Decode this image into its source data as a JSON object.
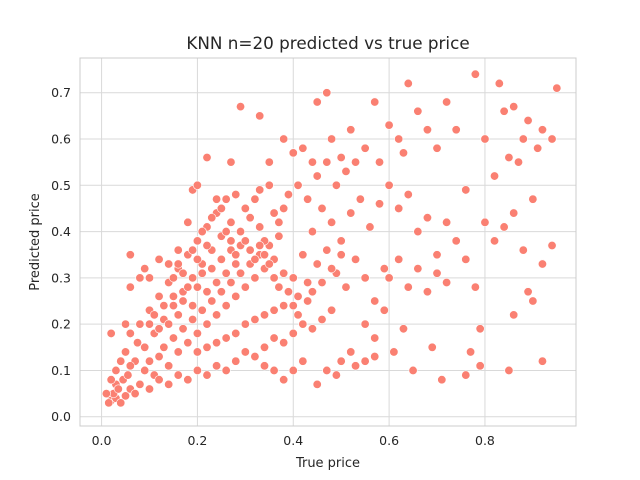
{
  "chart_data": {
    "type": "scatter",
    "title": "KNN n=20 predicted vs true price",
    "xlabel": "True price",
    "ylabel": "Predicted price",
    "xlim": [
      -0.045,
      0.99
    ],
    "ylim": [
      -0.02,
      0.775
    ],
    "xticks": [
      0.0,
      0.2,
      0.4,
      0.6,
      0.8
    ],
    "xtick_labels": [
      "0.0",
      "0.2",
      "0.4",
      "0.6",
      "0.8"
    ],
    "yticks": [
      0.0,
      0.1,
      0.2,
      0.3,
      0.4,
      0.5,
      0.6,
      0.7
    ],
    "ytick_labels": [
      "0.0",
      "0.1",
      "0.2",
      "0.3",
      "0.4",
      "0.5",
      "0.6",
      "0.7"
    ],
    "grid": true,
    "colors": {
      "points": "#fa8072",
      "point_edge": "#ffffff",
      "grid": "#d9d9d9",
      "frame": "#cccccc",
      "text": "#262626"
    },
    "series": [
      {
        "points": [
          [
            0.02,
            0.035
          ],
          [
            0.03,
            0.04
          ],
          [
            0.025,
            0.05
          ],
          [
            0.04,
            0.03
          ],
          [
            0.05,
            0.045
          ],
          [
            0.06,
            0.06
          ],
          [
            0.03,
            0.07
          ],
          [
            0.045,
            0.08
          ],
          [
            0.055,
            0.09
          ],
          [
            0.07,
            0.05
          ],
          [
            0.08,
            0.07
          ],
          [
            0.09,
            0.1
          ],
          [
            0.1,
            0.12
          ],
          [
            0.11,
            0.09
          ],
          [
            0.12,
            0.13
          ],
          [
            0.13,
            0.15
          ],
          [
            0.14,
            0.11
          ],
          [
            0.15,
            0.17
          ],
          [
            0.16,
            0.14
          ],
          [
            0.17,
            0.19
          ],
          [
            0.18,
            0.16
          ],
          [
            0.19,
            0.21
          ],
          [
            0.2,
            0.18
          ],
          [
            0.21,
            0.23
          ],
          [
            0.22,
            0.2
          ],
          [
            0.23,
            0.25
          ],
          [
            0.24,
            0.22
          ],
          [
            0.25,
            0.27
          ],
          [
            0.26,
            0.24
          ],
          [
            0.27,
            0.29
          ],
          [
            0.28,
            0.26
          ],
          [
            0.29,
            0.31
          ],
          [
            0.3,
            0.28
          ],
          [
            0.31,
            0.33
          ],
          [
            0.32,
            0.3
          ],
          [
            0.33,
            0.35
          ],
          [
            0.34,
            0.32
          ],
          [
            0.35,
            0.37
          ],
          [
            0.36,
            0.34
          ],
          [
            0.37,
            0.39
          ],
          [
            0.07,
            0.12
          ],
          [
            0.09,
            0.15
          ],
          [
            0.11,
            0.18
          ],
          [
            0.13,
            0.21
          ],
          [
            0.15,
            0.24
          ],
          [
            0.17,
            0.27
          ],
          [
            0.19,
            0.3
          ],
          [
            0.21,
            0.33
          ],
          [
            0.23,
            0.36
          ],
          [
            0.25,
            0.39
          ],
          [
            0.08,
            0.2
          ],
          [
            0.1,
            0.23
          ],
          [
            0.12,
            0.26
          ],
          [
            0.14,
            0.29
          ],
          [
            0.16,
            0.32
          ],
          [
            0.18,
            0.35
          ],
          [
            0.2,
            0.38
          ],
          [
            0.22,
            0.41
          ],
          [
            0.24,
            0.44
          ],
          [
            0.26,
            0.47
          ],
          [
            0.05,
            0.14
          ],
          [
            0.06,
            0.18
          ],
          [
            0.04,
            0.12
          ],
          [
            0.03,
            0.1
          ],
          [
            0.02,
            0.08
          ],
          [
            0.01,
            0.05
          ],
          [
            0.015,
            0.03
          ],
          [
            0.035,
            0.06
          ],
          [
            0.06,
            0.11
          ],
          [
            0.075,
            0.16
          ],
          [
            0.1,
            0.06
          ],
          [
            0.12,
            0.08
          ],
          [
            0.14,
            0.07
          ],
          [
            0.16,
            0.09
          ],
          [
            0.18,
            0.08
          ],
          [
            0.2,
            0.1
          ],
          [
            0.22,
            0.09
          ],
          [
            0.24,
            0.11
          ],
          [
            0.26,
            0.1
          ],
          [
            0.28,
            0.12
          ],
          [
            0.3,
            0.14
          ],
          [
            0.32,
            0.13
          ],
          [
            0.34,
            0.15
          ],
          [
            0.36,
            0.17
          ],
          [
            0.38,
            0.16
          ],
          [
            0.4,
            0.18
          ],
          [
            0.42,
            0.2
          ],
          [
            0.44,
            0.19
          ],
          [
            0.46,
            0.21
          ],
          [
            0.48,
            0.23
          ],
          [
            0.4,
            0.3
          ],
          [
            0.42,
            0.35
          ],
          [
            0.44,
            0.4
          ],
          [
            0.46,
            0.45
          ],
          [
            0.48,
            0.42
          ],
          [
            0.5,
            0.38
          ],
          [
            0.52,
            0.44
          ],
          [
            0.54,
            0.47
          ],
          [
            0.56,
            0.41
          ],
          [
            0.58,
            0.46
          ],
          [
            0.41,
            0.26
          ],
          [
            0.43,
            0.29
          ],
          [
            0.45,
            0.33
          ],
          [
            0.47,
            0.36
          ],
          [
            0.49,
            0.31
          ],
          [
            0.51,
            0.28
          ],
          [
            0.53,
            0.34
          ],
          [
            0.55,
            0.3
          ],
          [
            0.57,
            0.25
          ],
          [
            0.59,
            0.32
          ],
          [
            0.38,
            0.45
          ],
          [
            0.39,
            0.48
          ],
          [
            0.41,
            0.5
          ],
          [
            0.43,
            0.47
          ],
          [
            0.45,
            0.52
          ],
          [
            0.47,
            0.55
          ],
          [
            0.49,
            0.5
          ],
          [
            0.51,
            0.53
          ],
          [
            0.35,
            0.5
          ],
          [
            0.33,
            0.49
          ],
          [
            0.3,
            0.45
          ],
          [
            0.28,
            0.48
          ],
          [
            0.27,
            0.42
          ],
          [
            0.29,
            0.4
          ],
          [
            0.31,
            0.43
          ],
          [
            0.33,
            0.41
          ],
          [
            0.36,
            0.44
          ],
          [
            0.32,
            0.47
          ],
          [
            0.34,
            0.38
          ],
          [
            0.37,
            0.42
          ],
          [
            0.2,
            0.28
          ],
          [
            0.21,
            0.31
          ],
          [
            0.22,
            0.27
          ],
          [
            0.23,
            0.32
          ],
          [
            0.24,
            0.29
          ],
          [
            0.25,
            0.34
          ],
          [
            0.26,
            0.31
          ],
          [
            0.27,
            0.36
          ],
          [
            0.28,
            0.33
          ],
          [
            0.29,
            0.37
          ],
          [
            0.1,
            0.2
          ],
          [
            0.11,
            0.22
          ],
          [
            0.12,
            0.19
          ],
          [
            0.13,
            0.24
          ],
          [
            0.14,
            0.2
          ],
          [
            0.15,
            0.26
          ],
          [
            0.16,
            0.22
          ],
          [
            0.17,
            0.25
          ],
          [
            0.18,
            0.28
          ],
          [
            0.19,
            0.24
          ],
          [
            0.05,
            0.2
          ],
          [
            0.06,
            0.28
          ],
          [
            0.06,
            0.35
          ],
          [
            0.02,
            0.18
          ],
          [
            0.08,
            0.3
          ],
          [
            0.09,
            0.32
          ],
          [
            0.1,
            0.3
          ],
          [
            0.12,
            0.34
          ],
          [
            0.14,
            0.33
          ],
          [
            0.16,
            0.36
          ],
          [
            0.19,
            0.49
          ],
          [
            0.2,
            0.5
          ],
          [
            0.22,
            0.56
          ],
          [
            0.24,
            0.47
          ],
          [
            0.27,
            0.55
          ],
          [
            0.29,
            0.67
          ],
          [
            0.33,
            0.65
          ],
          [
            0.35,
            0.55
          ],
          [
            0.38,
            0.6
          ],
          [
            0.4,
            0.57
          ],
          [
            0.42,
            0.58
          ],
          [
            0.44,
            0.55
          ],
          [
            0.45,
            0.68
          ],
          [
            0.47,
            0.7
          ],
          [
            0.48,
            0.6
          ],
          [
            0.5,
            0.56
          ],
          [
            0.52,
            0.62
          ],
          [
            0.53,
            0.55
          ],
          [
            0.55,
            0.58
          ],
          [
            0.57,
            0.68
          ],
          [
            0.58,
            0.55
          ],
          [
            0.6,
            0.63
          ],
          [
            0.62,
            0.6
          ],
          [
            0.63,
            0.57
          ],
          [
            0.64,
            0.72
          ],
          [
            0.66,
            0.66
          ],
          [
            0.68,
            0.62
          ],
          [
            0.7,
            0.58
          ],
          [
            0.72,
            0.68
          ],
          [
            0.74,
            0.62
          ],
          [
            0.76,
            0.49
          ],
          [
            0.78,
            0.74
          ],
          [
            0.8,
            0.6
          ],
          [
            0.82,
            0.52
          ],
          [
            0.83,
            0.72
          ],
          [
            0.84,
            0.66
          ],
          [
            0.85,
            0.56
          ],
          [
            0.86,
            0.67
          ],
          [
            0.87,
            0.55
          ],
          [
            0.88,
            0.6
          ],
          [
            0.89,
            0.64
          ],
          [
            0.91,
            0.58
          ],
          [
            0.92,
            0.62
          ],
          [
            0.94,
            0.6
          ],
          [
            0.95,
            0.71
          ],
          [
            0.6,
            0.5
          ],
          [
            0.62,
            0.45
          ],
          [
            0.64,
            0.48
          ],
          [
            0.66,
            0.4
          ],
          [
            0.68,
            0.43
          ],
          [
            0.7,
            0.35
          ],
          [
            0.72,
            0.42
          ],
          [
            0.74,
            0.38
          ],
          [
            0.76,
            0.34
          ],
          [
            0.78,
            0.28
          ],
          [
            0.8,
            0.42
          ],
          [
            0.82,
            0.38
          ],
          [
            0.84,
            0.41
          ],
          [
            0.86,
            0.44
          ],
          [
            0.88,
            0.36
          ],
          [
            0.9,
            0.47
          ],
          [
            0.92,
            0.33
          ],
          [
            0.94,
            0.37
          ],
          [
            0.6,
            0.3
          ],
          [
            0.62,
            0.34
          ],
          [
            0.64,
            0.28
          ],
          [
            0.66,
            0.32
          ],
          [
            0.68,
            0.27
          ],
          [
            0.7,
            0.31
          ],
          [
            0.72,
            0.29
          ],
          [
            0.55,
            0.2
          ],
          [
            0.57,
            0.17
          ],
          [
            0.59,
            0.23
          ],
          [
            0.61,
            0.14
          ],
          [
            0.63,
            0.19
          ],
          [
            0.65,
            0.1
          ],
          [
            0.69,
            0.15
          ],
          [
            0.71,
            0.08
          ],
          [
            0.76,
            0.09
          ],
          [
            0.77,
            0.14
          ],
          [
            0.79,
            0.19
          ],
          [
            0.79,
            0.11
          ],
          [
            0.85,
            0.1
          ],
          [
            0.86,
            0.22
          ],
          [
            0.89,
            0.27
          ],
          [
            0.9,
            0.25
          ],
          [
            0.92,
            0.12
          ],
          [
            0.52,
            0.14
          ],
          [
            0.5,
            0.12
          ],
          [
            0.45,
            0.07
          ],
          [
            0.47,
            0.1
          ],
          [
            0.49,
            0.09
          ],
          [
            0.53,
            0.11
          ],
          [
            0.55,
            0.12
          ],
          [
            0.57,
            0.13
          ],
          [
            0.38,
            0.08
          ],
          [
            0.4,
            0.1
          ],
          [
            0.42,
            0.12
          ],
          [
            0.36,
            0.1
          ],
          [
            0.34,
            0.11
          ],
          [
            0.2,
            0.14
          ],
          [
            0.22,
            0.15
          ],
          [
            0.24,
            0.16
          ],
          [
            0.26,
            0.17
          ],
          [
            0.28,
            0.18
          ],
          [
            0.3,
            0.2
          ],
          [
            0.32,
            0.21
          ],
          [
            0.34,
            0.22
          ],
          [
            0.36,
            0.23
          ],
          [
            0.38,
            0.24
          ],
          [
            0.15,
            0.3
          ],
          [
            0.16,
            0.33
          ],
          [
            0.17,
            0.31
          ],
          [
            0.18,
            0.42
          ],
          [
            0.19,
            0.36
          ],
          [
            0.2,
            0.34
          ],
          [
            0.21,
            0.4
          ],
          [
            0.22,
            0.37
          ],
          [
            0.23,
            0.43
          ],
          [
            0.25,
            0.45
          ],
          [
            0.26,
            0.4
          ],
          [
            0.27,
            0.38
          ],
          [
            0.28,
            0.35
          ],
          [
            0.3,
            0.38
          ],
          [
            0.31,
            0.36
          ],
          [
            0.32,
            0.34
          ],
          [
            0.33,
            0.37
          ],
          [
            0.34,
            0.35
          ],
          [
            0.35,
            0.33
          ],
          [
            0.36,
            0.3
          ],
          [
            0.37,
            0.28
          ],
          [
            0.38,
            0.31
          ],
          [
            0.39,
            0.27
          ],
          [
            0.4,
            0.24
          ],
          [
            0.41,
            0.22
          ],
          [
            0.43,
            0.25
          ],
          [
            0.44,
            0.27
          ],
          [
            0.46,
            0.29
          ],
          [
            0.48,
            0.32
          ],
          [
            0.5,
            0.35
          ]
        ]
      }
    ]
  }
}
